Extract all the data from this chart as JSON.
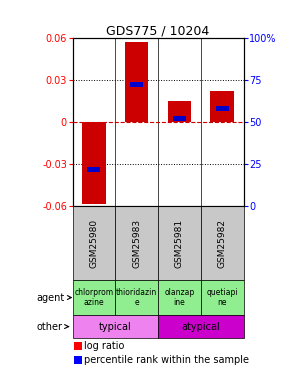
{
  "title": "GDS775 / 10204",
  "samples": [
    "GSM25980",
    "GSM25983",
    "GSM25981",
    "GSM25982"
  ],
  "log_ratios": [
    -0.058,
    0.057,
    0.015,
    0.022
  ],
  "percentile_ranks": [
    22,
    72,
    52,
    58
  ],
  "agents": [
    "chlorprom\nazine",
    "thioridazin\ne",
    "olanzap\nine",
    "quetiapi\nne"
  ],
  "other_groups": [
    [
      "typical",
      2
    ],
    [
      "atypical",
      2
    ]
  ],
  "typical_color": "#EE82EE",
  "atypical_color": "#CC00CC",
  "agent_color": "#90EE90",
  "ylim": [
    -0.06,
    0.06
  ],
  "yticks_left": [
    -0.06,
    -0.03,
    0,
    0.03,
    0.06
  ],
  "yticks_right": [
    0,
    25,
    50,
    75,
    100
  ],
  "bar_color": "#CC0000",
  "percentile_color": "#0000CC",
  "bar_width": 0.55,
  "hline_color": "#CC0000",
  "dotted_color": "black",
  "gray_bg": "#C8C8C8"
}
